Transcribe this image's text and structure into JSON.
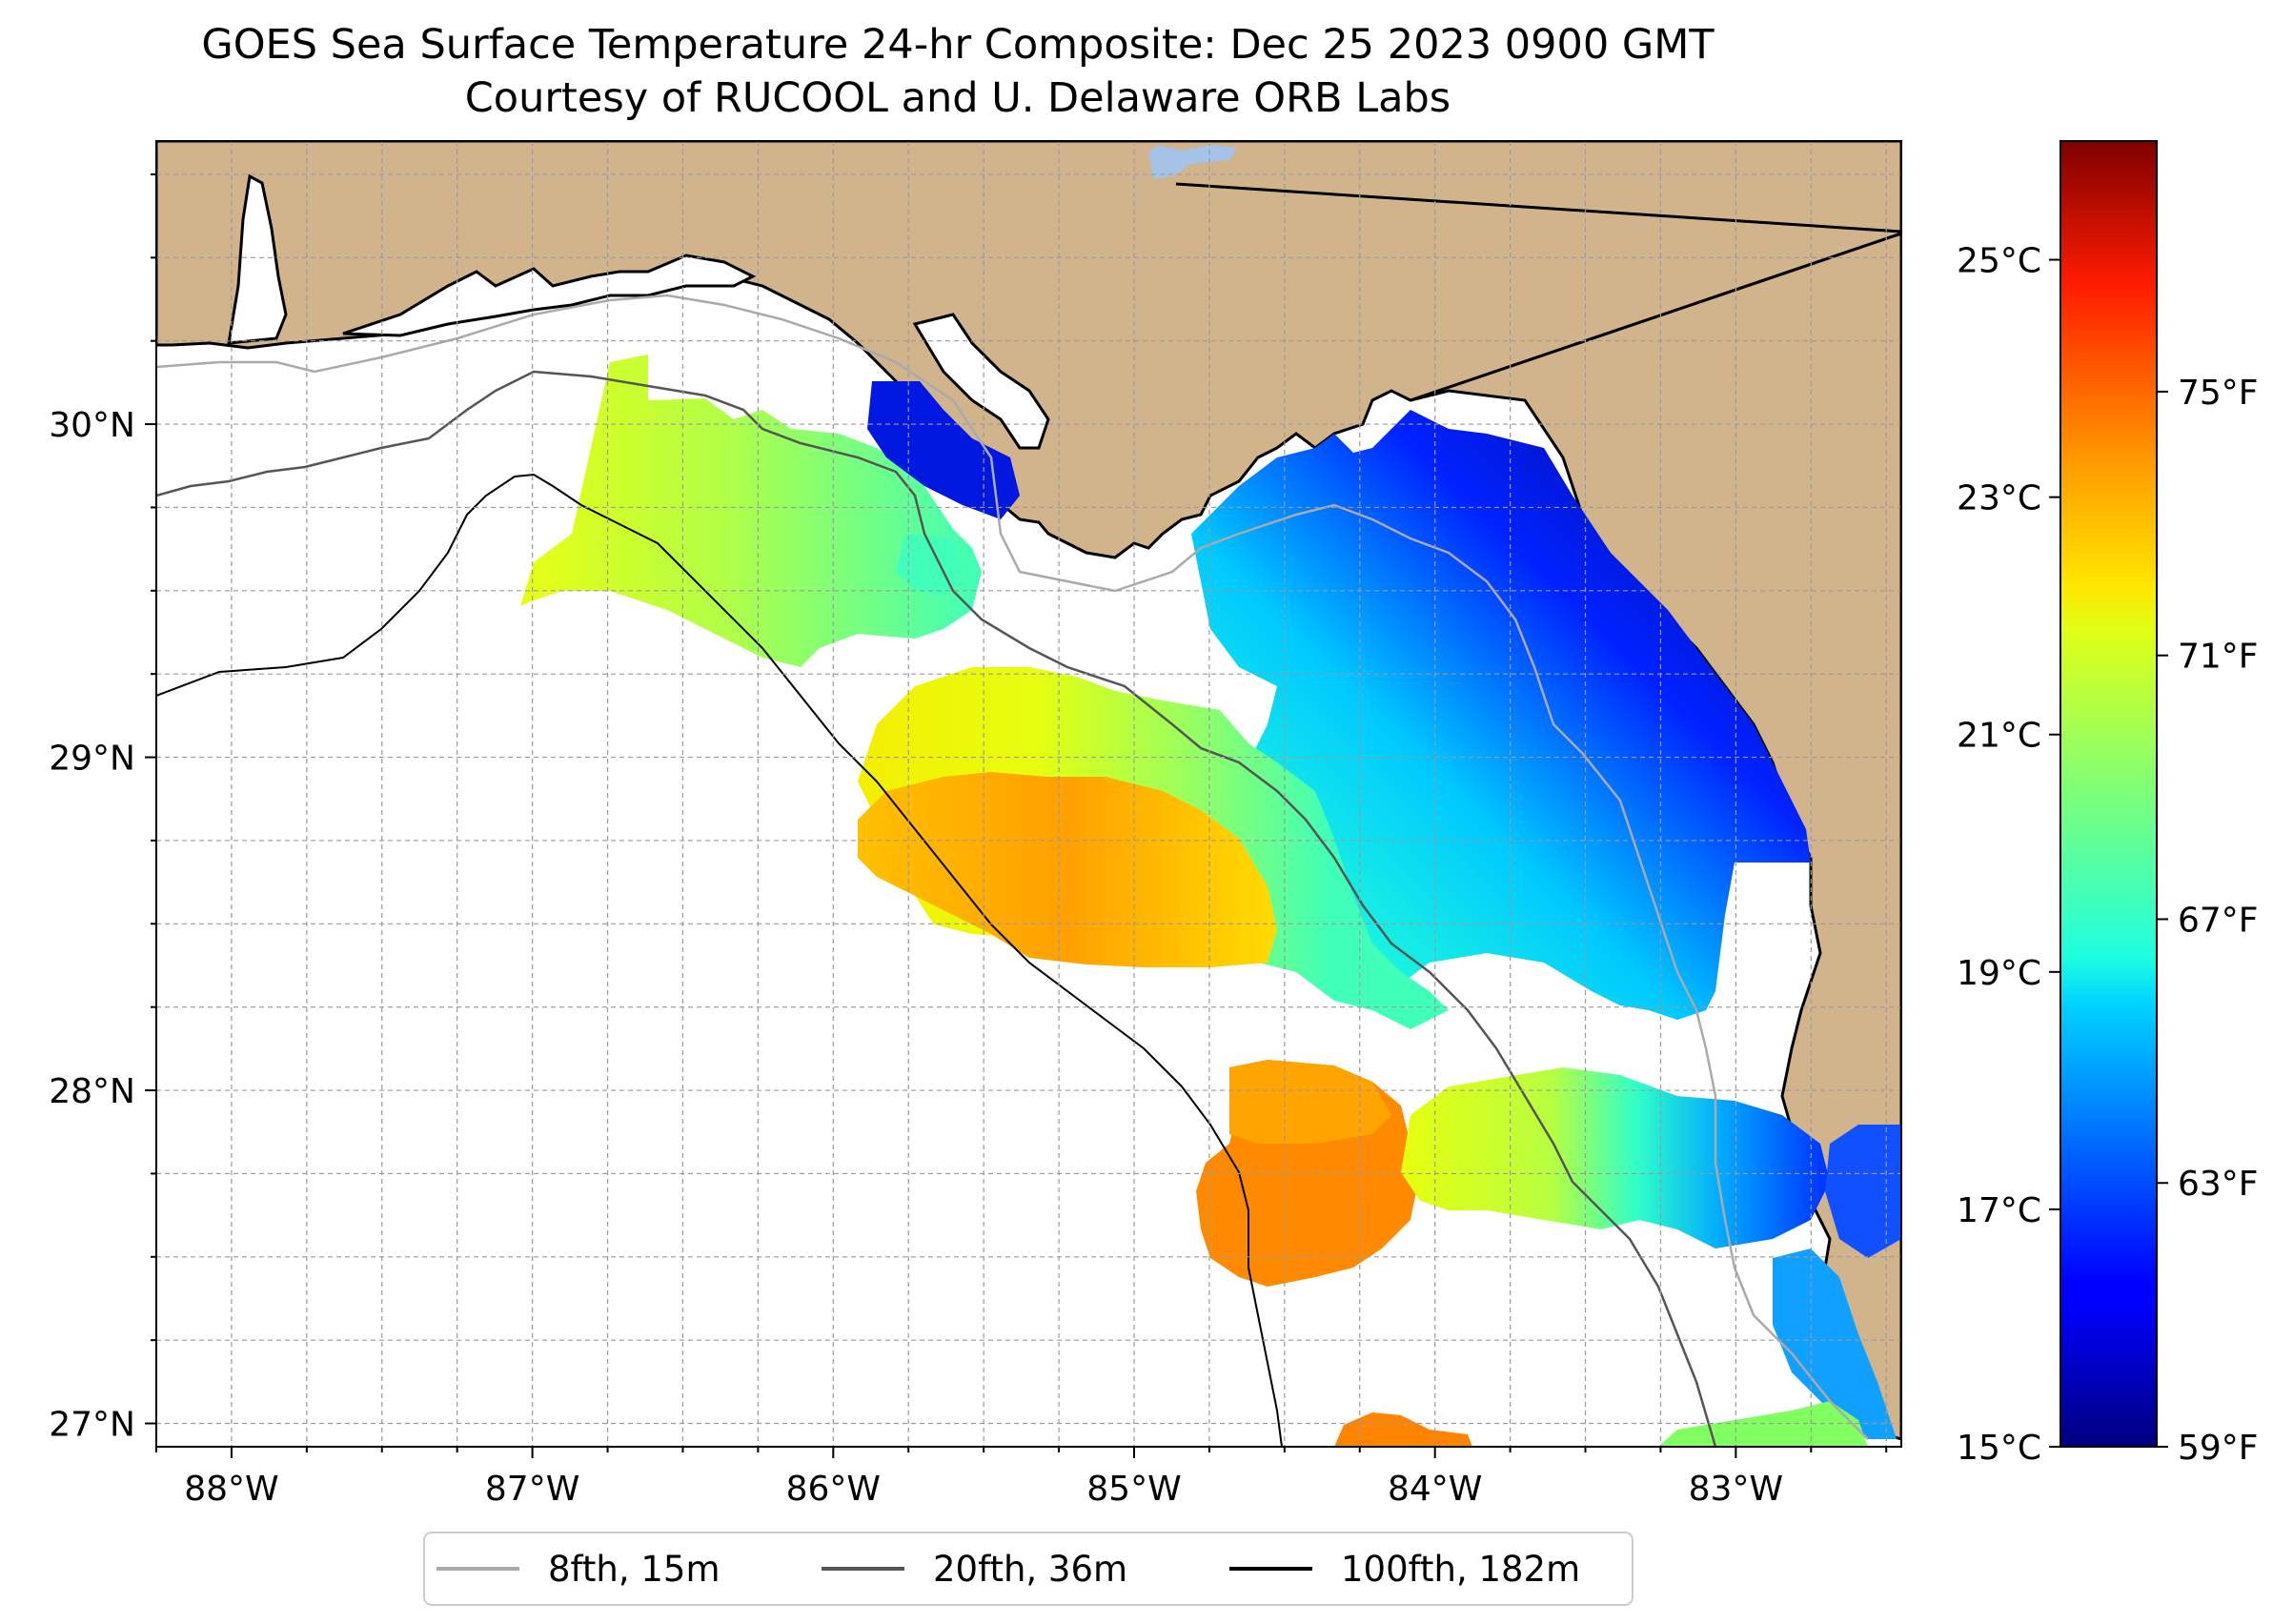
{
  "title": {
    "line1": "GOES Sea Surface Temperature 24-hr Composite: Dec 25 2023 0900 GMT",
    "line2": "Courtesy of RUCOOL and U. Delaware ORB Labs"
  },
  "map": {
    "lon_range": [
      -88.25,
      -82.45
    ],
    "lat_range": [
      26.93,
      30.85
    ],
    "lon_ticks": [
      {
        "value": -88,
        "label": "88°W"
      },
      {
        "value": -87,
        "label": "87°W"
      },
      {
        "value": -86,
        "label": "86°W"
      },
      {
        "value": -85,
        "label": "85°W"
      },
      {
        "value": -84,
        "label": "84°W"
      },
      {
        "value": -83,
        "label": "83°W"
      }
    ],
    "lat_ticks": [
      {
        "value": 30,
        "label": "30°N"
      },
      {
        "value": 29,
        "label": "29°N"
      },
      {
        "value": 28,
        "label": "28°N"
      },
      {
        "value": 27,
        "label": "27°N"
      }
    ],
    "land_color": "#d2b48c",
    "water_color": "#ffffff",
    "lake_color": "#a6c2e6",
    "grid": "dashed, every 0.25°"
  },
  "colorbar": {
    "celsius_range": [
      15,
      26
    ],
    "celsius_ticks": [
      {
        "value": 25,
        "label": "25°C"
      },
      {
        "value": 23,
        "label": "23°C"
      },
      {
        "value": 21,
        "label": "21°C"
      },
      {
        "value": 19,
        "label": "19°C"
      },
      {
        "value": 17,
        "label": "17°C"
      },
      {
        "value": 15,
        "label": "15°C"
      }
    ],
    "fahrenheit_ticks": [
      {
        "value": 75,
        "label": "75°F"
      },
      {
        "value": 71,
        "label": "71°F"
      },
      {
        "value": 67,
        "label": "67°F"
      },
      {
        "value": 63,
        "label": "63°F"
      },
      {
        "value": 59,
        "label": "59°F"
      }
    ],
    "colormap": "jet"
  },
  "legend": [
    {
      "label": "8fth, 15m",
      "color": "#aaaaaa"
    },
    {
      "label": "20fth, 36m",
      "color": "#555555"
    },
    {
      "label": "100fth, 182m",
      "color": "#000000"
    }
  ]
}
